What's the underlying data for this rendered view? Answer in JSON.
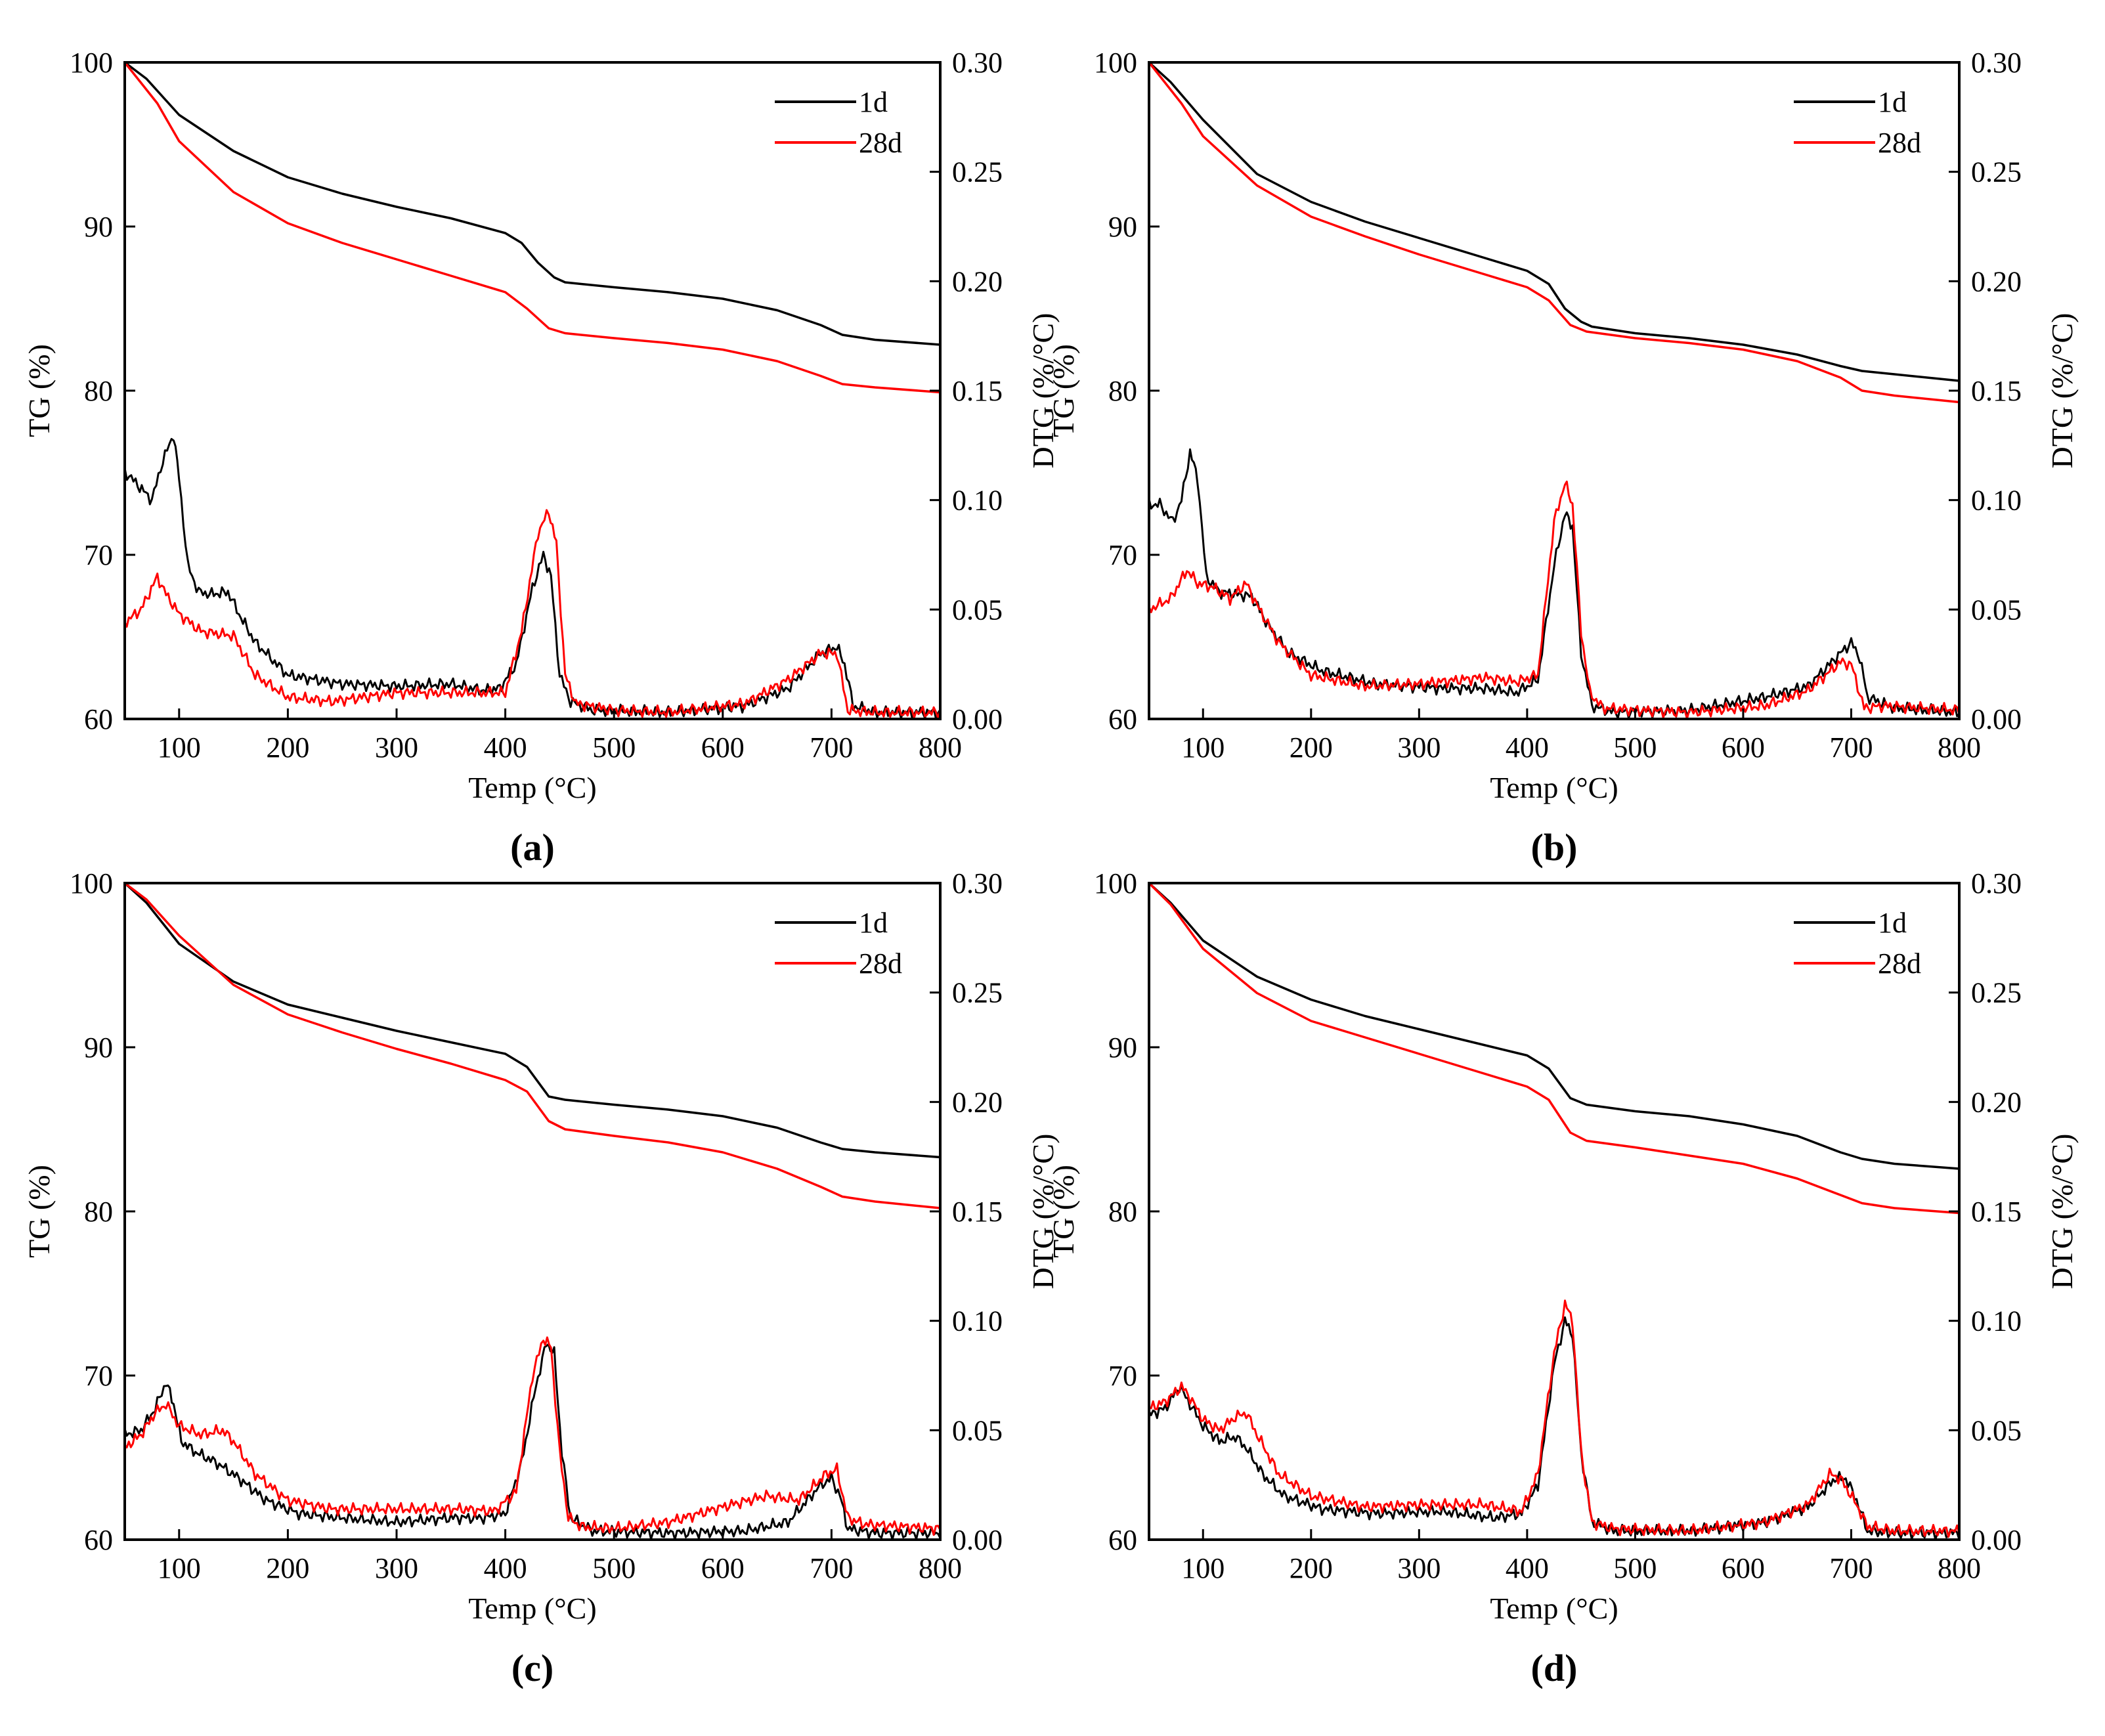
{
  "chart_data": [
    {
      "type": "line",
      "label": "(a)",
      "xlabel": "Temp (°C)",
      "ylabel": "TG (%)",
      "y2label": "DTG (%/°C)",
      "xlim": [
        50,
        800
      ],
      "ylim": [
        60,
        100
      ],
      "y2lim": [
        0.0,
        0.3
      ],
      "xticks": [
        "100",
        "200",
        "300",
        "400",
        "500",
        "600",
        "700",
        "800"
      ],
      "yticks": [
        "60",
        "70",
        "80",
        "90",
        "100"
      ],
      "y2ticks": [
        "0.00",
        "0.05",
        "0.10",
        "0.15",
        "0.20",
        "0.25",
        "0.30"
      ],
      "legend": "top-right",
      "series": [
        {
          "name": "1d",
          "color": "#000000",
          "axis": "TG",
          "x": [
            50,
            70,
            100,
            150,
            200,
            250,
            300,
            350,
            400,
            415,
            430,
            445,
            455,
            500,
            550,
            600,
            650,
            690,
            710,
            740,
            800
          ],
          "y": [
            100,
            99,
            96.8,
            94.6,
            93.0,
            92.0,
            91.2,
            90.5,
            89.6,
            89.0,
            87.8,
            86.9,
            86.6,
            86.3,
            86.0,
            85.6,
            84.9,
            84.0,
            83.4,
            83.1,
            82.8
          ]
        },
        {
          "name": "28d",
          "color": "#ff0000",
          "axis": "TG",
          "x": [
            50,
            80,
            100,
            150,
            200,
            250,
            300,
            350,
            400,
            420,
            440,
            455,
            500,
            550,
            600,
            650,
            690,
            710,
            740,
            800
          ],
          "y": [
            100,
            97.5,
            95.2,
            92.1,
            90.2,
            89.0,
            88.0,
            87.0,
            86.0,
            85.0,
            83.8,
            83.5,
            83.2,
            82.9,
            82.5,
            81.8,
            80.9,
            80.4,
            80.2,
            79.9
          ]
        },
        {
          "name": "1d",
          "color": "#000000",
          "axis": "DTG",
          "x": [
            50,
            60,
            75,
            85,
            95,
            100,
            108,
            118,
            130,
            145,
            155,
            170,
            200,
            250,
            300,
            350,
            380,
            395,
            410,
            425,
            435,
            442,
            450,
            460,
            480,
            550,
            620,
            660,
            690,
            705,
            712,
            720,
            740,
            800
          ],
          "y": [
            0.113,
            0.108,
            0.1,
            0.118,
            0.13,
            0.11,
            0.07,
            0.058,
            0.057,
            0.058,
            0.048,
            0.035,
            0.02,
            0.016,
            0.015,
            0.016,
            0.013,
            0.014,
            0.025,
            0.06,
            0.075,
            0.065,
            0.02,
            0.008,
            0.004,
            0.003,
            0.006,
            0.014,
            0.03,
            0.033,
            0.025,
            0.006,
            0.003,
            0.003
          ]
        },
        {
          "name": "28d",
          "color": "#ff0000",
          "axis": "DTG",
          "x": [
            50,
            65,
            80,
            88,
            100,
            120,
            150,
            170,
            200,
            240,
            300,
            380,
            400,
            415,
            430,
            440,
            447,
            455,
            465,
            500,
            550,
            620,
            660,
            690,
            705,
            715,
            740,
            800
          ],
          "y": [
            0.044,
            0.05,
            0.065,
            0.057,
            0.048,
            0.04,
            0.038,
            0.02,
            0.01,
            0.008,
            0.012,
            0.012,
            0.012,
            0.04,
            0.085,
            0.095,
            0.08,
            0.02,
            0.007,
            0.004,
            0.003,
            0.007,
            0.018,
            0.03,
            0.03,
            0.004,
            0.003,
            0.003
          ]
        }
      ]
    },
    {
      "type": "line",
      "label": "(b)",
      "xlabel": "Temp (°C)",
      "ylabel": "TG (%)",
      "y2label": "DTG (%/°C)",
      "xlim": [
        50,
        800
      ],
      "ylim": [
        60,
        100
      ],
      "y2lim": [
        0.0,
        0.3
      ],
      "xticks": [
        "100",
        "200",
        "300",
        "400",
        "500",
        "600",
        "700",
        "800"
      ],
      "yticks": [
        "60",
        "70",
        "80",
        "90",
        "100"
      ],
      "y2ticks": [
        "0.00",
        "0.05",
        "0.10",
        "0.15",
        "0.20",
        "0.25",
        "0.30"
      ],
      "legend": "top-right",
      "series": [
        {
          "name": "1d",
          "color": "#000000",
          "axis": "TG",
          "x": [
            50,
            70,
            100,
            150,
            200,
            250,
            300,
            350,
            400,
            420,
            435,
            450,
            460,
            500,
            550,
            600,
            650,
            690,
            710,
            740,
            800
          ],
          "y": [
            100,
            98.8,
            96.5,
            93.2,
            91.5,
            90.3,
            89.3,
            88.3,
            87.3,
            86.5,
            85.0,
            84.2,
            83.9,
            83.5,
            83.2,
            82.8,
            82.2,
            81.5,
            81.2,
            81.0,
            80.6
          ]
        },
        {
          "name": "28d",
          "color": "#ff0000",
          "axis": "TG",
          "x": [
            50,
            80,
            100,
            150,
            200,
            250,
            300,
            350,
            400,
            420,
            440,
            455,
            500,
            550,
            600,
            650,
            690,
            710,
            740,
            800
          ],
          "y": [
            100,
            97.5,
            95.5,
            92.5,
            90.6,
            89.4,
            88.3,
            87.3,
            86.3,
            85.5,
            84.0,
            83.6,
            83.2,
            82.9,
            82.5,
            81.8,
            80.8,
            80.0,
            79.7,
            79.3
          ]
        },
        {
          "name": "1d",
          "color": "#000000",
          "axis": "DTG",
          "x": [
            50,
            60,
            72,
            80,
            88,
            95,
            103,
            115,
            130,
            145,
            160,
            180,
            210,
            260,
            320,
            360,
            390,
            410,
            425,
            435,
            442,
            450,
            460,
            480,
            550,
            620,
            660,
            690,
            700,
            708,
            715,
            740,
            800
          ],
          "y": [
            0.098,
            0.098,
            0.09,
            0.1,
            0.122,
            0.11,
            0.065,
            0.058,
            0.057,
            0.056,
            0.043,
            0.03,
            0.022,
            0.016,
            0.014,
            0.014,
            0.012,
            0.018,
            0.07,
            0.094,
            0.088,
            0.03,
            0.006,
            0.003,
            0.004,
            0.01,
            0.015,
            0.03,
            0.035,
            0.028,
            0.01,
            0.005,
            0.003
          ]
        },
        {
          "name": "28d",
          "color": "#ff0000",
          "axis": "DTG",
          "x": [
            50,
            70,
            85,
            95,
            110,
            125,
            140,
            150,
            170,
            200,
            250,
            300,
            360,
            390,
            410,
            425,
            435,
            442,
            450,
            458,
            470,
            500,
            550,
            620,
            660,
            690,
            700,
            712,
            730,
            800
          ],
          "y": [
            0.05,
            0.055,
            0.068,
            0.062,
            0.06,
            0.055,
            0.062,
            0.052,
            0.035,
            0.02,
            0.015,
            0.016,
            0.019,
            0.017,
            0.02,
            0.09,
            0.108,
            0.098,
            0.04,
            0.012,
            0.005,
            0.004,
            0.003,
            0.006,
            0.013,
            0.026,
            0.025,
            0.005,
            0.006,
            0.004
          ]
        }
      ]
    },
    {
      "type": "line",
      "label": "(c)",
      "xlabel": "Temp (°C)",
      "ylabel": "TG (%)",
      "y2label": "DTG (%/°C)",
      "xlim": [
        50,
        800
      ],
      "ylim": [
        60,
        100
      ],
      "y2lim": [
        0.0,
        0.3
      ],
      "xticks": [
        "100",
        "200",
        "300",
        "400",
        "500",
        "600",
        "700",
        "800"
      ],
      "yticks": [
        "60",
        "70",
        "80",
        "90",
        "100"
      ],
      "y2ticks": [
        "0.00",
        "0.05",
        "0.10",
        "0.15",
        "0.20",
        "0.25",
        "0.30"
      ],
      "legend": "top-right",
      "series": [
        {
          "name": "1d",
          "color": "#000000",
          "axis": "TG",
          "x": [
            50,
            70,
            100,
            150,
            200,
            250,
            300,
            350,
            400,
            420,
            440,
            455,
            500,
            550,
            600,
            650,
            690,
            710,
            740,
            800
          ],
          "y": [
            100,
            98.8,
            96.3,
            94.0,
            92.6,
            91.8,
            91.0,
            90.3,
            89.6,
            88.8,
            87.0,
            86.8,
            86.5,
            86.2,
            85.8,
            85.1,
            84.2,
            83.8,
            83.6,
            83.3
          ]
        },
        {
          "name": "28d",
          "color": "#ff0000",
          "axis": "TG",
          "x": [
            50,
            70,
            100,
            150,
            200,
            250,
            300,
            350,
            400,
            420,
            440,
            455,
            500,
            550,
            600,
            650,
            690,
            710,
            740,
            800
          ],
          "y": [
            100,
            99.0,
            96.8,
            93.8,
            92.0,
            90.9,
            89.9,
            89.0,
            88.0,
            87.3,
            85.5,
            85.0,
            84.6,
            84.2,
            83.6,
            82.6,
            81.5,
            80.9,
            80.6,
            80.2
          ]
        },
        {
          "name": "1d",
          "color": "#000000",
          "axis": "DTG",
          "x": [
            50,
            65,
            78,
            88,
            95,
            102,
            115,
            135,
            155,
            180,
            210,
            250,
            300,
            350,
            380,
            400,
            415,
            428,
            438,
            445,
            452,
            460,
            480,
            550,
            620,
            660,
            690,
            700,
            708,
            715,
            740,
            800
          ],
          "y": [
            0.048,
            0.05,
            0.06,
            0.072,
            0.062,
            0.045,
            0.04,
            0.035,
            0.028,
            0.018,
            0.012,
            0.01,
            0.008,
            0.01,
            0.01,
            0.012,
            0.035,
            0.07,
            0.09,
            0.085,
            0.04,
            0.01,
            0.004,
            0.003,
            0.004,
            0.008,
            0.025,
            0.028,
            0.02,
            0.005,
            0.003,
            0.003
          ]
        },
        {
          "name": "28d",
          "color": "#ff0000",
          "axis": "DTG",
          "x": [
            50,
            65,
            78,
            88,
            100,
            120,
            140,
            150,
            170,
            200,
            240,
            300,
            360,
            390,
            410,
            425,
            435,
            442,
            450,
            458,
            470,
            500,
            550,
            600,
            640,
            670,
            695,
            705,
            715,
            730,
            800
          ],
          "y": [
            0.042,
            0.048,
            0.058,
            0.062,
            0.052,
            0.048,
            0.05,
            0.045,
            0.03,
            0.018,
            0.014,
            0.014,
            0.014,
            0.013,
            0.022,
            0.075,
            0.092,
            0.088,
            0.04,
            0.01,
            0.006,
            0.005,
            0.008,
            0.015,
            0.02,
            0.018,
            0.03,
            0.032,
            0.01,
            0.007,
            0.005
          ]
        }
      ]
    },
    {
      "type": "line",
      "label": "(d)",
      "xlabel": "Temp (°C)",
      "ylabel": "TG (%)",
      "y2label": "DTG (%/°C)",
      "xlim": [
        50,
        800
      ],
      "ylim": [
        60,
        100
      ],
      "y2lim": [
        0.0,
        0.3
      ],
      "xticks": [
        "100",
        "200",
        "300",
        "400",
        "500",
        "600",
        "700",
        "800"
      ],
      "yticks": [
        "60",
        "70",
        "80",
        "90",
        "100"
      ],
      "y2ticks": [
        "0.00",
        "0.05",
        "0.10",
        "0.15",
        "0.20",
        "0.25",
        "0.30"
      ],
      "legend": "top-right",
      "series": [
        {
          "name": "1d",
          "color": "#000000",
          "axis": "TG",
          "x": [
            50,
            70,
            100,
            150,
            200,
            250,
            300,
            350,
            400,
            420,
            440,
            455,
            500,
            550,
            600,
            650,
            690,
            710,
            740,
            800
          ],
          "y": [
            100,
            98.8,
            96.5,
            94.3,
            92.9,
            91.9,
            91.1,
            90.3,
            89.5,
            88.7,
            86.9,
            86.5,
            86.1,
            85.8,
            85.3,
            84.6,
            83.6,
            83.2,
            82.9,
            82.6
          ]
        },
        {
          "name": "28d",
          "color": "#ff0000",
          "axis": "TG",
          "x": [
            50,
            70,
            100,
            150,
            200,
            250,
            300,
            350,
            400,
            420,
            440,
            455,
            500,
            550,
            600,
            650,
            690,
            710,
            740,
            800
          ],
          "y": [
            100,
            98.7,
            96.0,
            93.3,
            91.6,
            90.6,
            89.6,
            88.6,
            87.6,
            86.8,
            84.8,
            84.3,
            83.9,
            83.4,
            82.9,
            82.0,
            81.0,
            80.5,
            80.2,
            79.9
          ]
        },
        {
          "name": "1d",
          "color": "#000000",
          "axis": "DTG",
          "x": [
            50,
            65,
            78,
            88,
            100,
            115,
            130,
            140,
            155,
            175,
            210,
            260,
            320,
            370,
            395,
            410,
            425,
            435,
            442,
            450,
            460,
            480,
            550,
            620,
            660,
            685,
            695,
            705,
            715,
            740,
            800
          ],
          "y": [
            0.057,
            0.06,
            0.07,
            0.062,
            0.052,
            0.045,
            0.047,
            0.042,
            0.03,
            0.02,
            0.014,
            0.012,
            0.013,
            0.01,
            0.012,
            0.025,
            0.08,
            0.1,
            0.094,
            0.04,
            0.008,
            0.004,
            0.004,
            0.008,
            0.015,
            0.028,
            0.028,
            0.018,
            0.004,
            0.003,
            0.003
          ]
        },
        {
          "name": "28d",
          "color": "#ff0000",
          "axis": "DTG",
          "x": [
            50,
            65,
            80,
            88,
            100,
            115,
            130,
            140,
            150,
            170,
            200,
            250,
            300,
            360,
            395,
            410,
            425,
            435,
            442,
            450,
            460,
            480,
            550,
            620,
            660,
            680,
            690,
            705,
            715,
            740,
            800
          ],
          "y": [
            0.06,
            0.063,
            0.07,
            0.065,
            0.055,
            0.05,
            0.056,
            0.058,
            0.048,
            0.03,
            0.02,
            0.015,
            0.016,
            0.016,
            0.013,
            0.03,
            0.085,
            0.108,
            0.1,
            0.04,
            0.008,
            0.005,
            0.004,
            0.008,
            0.016,
            0.03,
            0.028,
            0.016,
            0.006,
            0.004,
            0.004
          ]
        }
      ]
    }
  ]
}
